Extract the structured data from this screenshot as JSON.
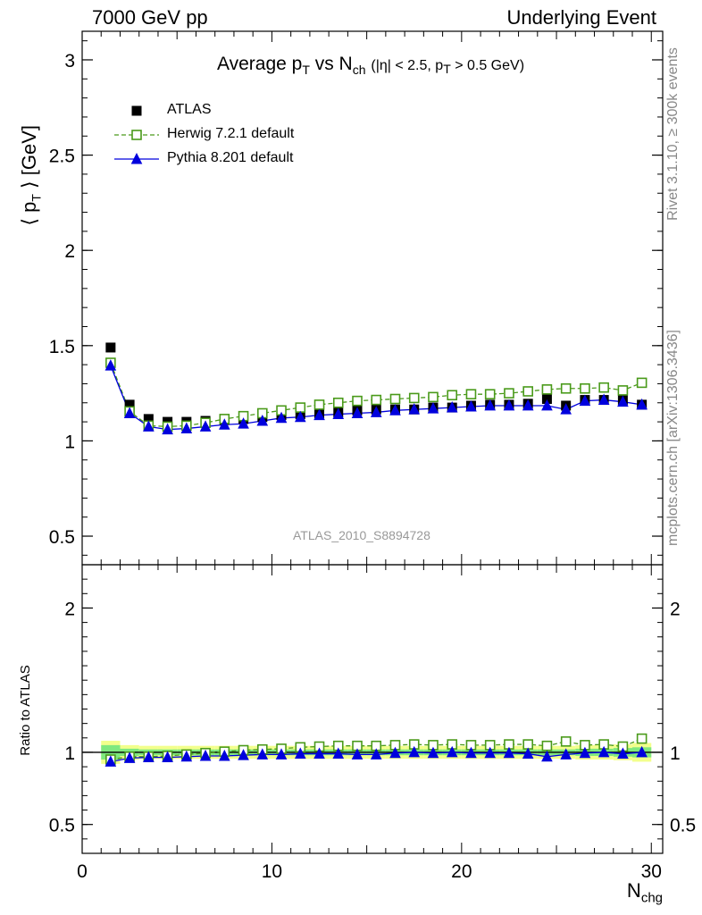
{
  "header": {
    "left": "7000 GeV pp",
    "right": "Underlying Event"
  },
  "side_labels": {
    "rivet": "Rivet 3.1.10, ≥ 300k events",
    "mcplots": "mcplots.cern.ch [arXiv:1306.3436]"
  },
  "watermark": "ATLAS_2010_S8894728",
  "colors": {
    "atlas": "#000000",
    "herwig": "#4a9a1a",
    "pythia": "#0000dd",
    "band_inner": "#7fe87f",
    "band_outer": "#f2ff8c"
  },
  "chart_data": [
    {
      "type": "scatter",
      "title": "Average pT vs Nch (|η| < 2.5, pT > 0.5 GeV)",
      "ylabel": "⟨ pT ⟩ [GeV]",
      "xlabel": "Nchg",
      "xlim": [
        0,
        30.6
      ],
      "ylim": [
        0.35,
        3.15
      ],
      "yticks": [
        0.5,
        1,
        1.5,
        2,
        2.5,
        3
      ],
      "legend_position": "top-left",
      "x": [
        1.5,
        2.5,
        3.5,
        4.5,
        5.5,
        6.5,
        7.5,
        8.5,
        9.5,
        10.5,
        11.5,
        12.5,
        13.5,
        14.5,
        15.5,
        16.5,
        17.5,
        18.5,
        19.5,
        20.5,
        21.5,
        22.5,
        23.5,
        24.5,
        25.5,
        26.5,
        27.5,
        28.5,
        29.5
      ],
      "series": [
        {
          "name": "ATLAS",
          "marker": "square-filled",
          "values": [
            1.49,
            1.19,
            1.115,
            1.1,
            1.1,
            1.105,
            1.11,
            1.115,
            1.125,
            1.135,
            1.14,
            1.145,
            1.15,
            1.16,
            1.165,
            1.165,
            1.165,
            1.175,
            1.175,
            1.185,
            1.19,
            1.19,
            1.195,
            1.22,
            1.185,
            1.215,
            1.215,
            1.215,
            1.19
          ]
        },
        {
          "name": "Herwig 7.2.1 default",
          "marker": "square-open",
          "line": "dashed",
          "values": [
            1.41,
            1.155,
            1.08,
            1.075,
            1.08,
            1.095,
            1.115,
            1.13,
            1.145,
            1.16,
            1.175,
            1.19,
            1.2,
            1.21,
            1.215,
            1.22,
            1.225,
            1.23,
            1.24,
            1.245,
            1.245,
            1.25,
            1.26,
            1.27,
            1.275,
            1.275,
            1.28,
            1.265,
            1.305
          ]
        },
        {
          "name": "Pythia 8.201 default",
          "marker": "triangle-filled",
          "line": "solid",
          "values": [
            1.395,
            1.145,
            1.075,
            1.06,
            1.065,
            1.075,
            1.085,
            1.09,
            1.105,
            1.12,
            1.125,
            1.135,
            1.14,
            1.145,
            1.15,
            1.16,
            1.165,
            1.17,
            1.175,
            1.18,
            1.185,
            1.185,
            1.185,
            1.185,
            1.165,
            1.21,
            1.215,
            1.205,
            1.19
          ]
        }
      ]
    },
    {
      "type": "scatter",
      "ylabel": "Ratio to ATLAS",
      "xlabel": "Nchg",
      "xlim": [
        0,
        30.6
      ],
      "ylim": [
        0.3,
        2.3
      ],
      "yticks": [
        0.5,
        1,
        2
      ],
      "xticks": [
        0,
        10,
        20,
        30
      ],
      "x": [
        1.5,
        2.5,
        3.5,
        4.5,
        5.5,
        6.5,
        7.5,
        8.5,
        9.5,
        10.5,
        11.5,
        12.5,
        13.5,
        14.5,
        15.5,
        16.5,
        17.5,
        18.5,
        19.5,
        20.5,
        21.5,
        22.5,
        23.5,
        24.5,
        25.5,
        26.5,
        27.5,
        28.5,
        29.5
      ],
      "bands": {
        "outer_halfwidth": [
          0.08,
          0.05,
          0.045,
          0.045,
          0.045,
          0.045,
          0.045,
          0.045,
          0.045,
          0.045,
          0.045,
          0.045,
          0.045,
          0.045,
          0.045,
          0.045,
          0.045,
          0.045,
          0.045,
          0.045,
          0.045,
          0.045,
          0.045,
          0.045,
          0.045,
          0.05,
          0.05,
          0.055,
          0.065
        ],
        "inner_halfwidth": [
          0.05,
          0.025,
          0.02,
          0.02,
          0.02,
          0.02,
          0.02,
          0.02,
          0.02,
          0.02,
          0.02,
          0.02,
          0.02,
          0.02,
          0.02,
          0.02,
          0.02,
          0.02,
          0.02,
          0.02,
          0.02,
          0.02,
          0.02,
          0.02,
          0.02,
          0.025,
          0.025,
          0.03,
          0.035
        ]
      },
      "series": [
        {
          "name": "Herwig 7.2.1 default",
          "marker": "square-open",
          "line": "dashed",
          "values": [
            0.95,
            0.97,
            0.97,
            0.975,
            0.985,
            0.995,
            1.005,
            1.015,
            1.02,
            1.025,
            1.035,
            1.04,
            1.045,
            1.045,
            1.045,
            1.05,
            1.055,
            1.05,
            1.055,
            1.05,
            1.05,
            1.055,
            1.055,
            1.045,
            1.075,
            1.05,
            1.055,
            1.04,
            1.095
          ]
        },
        {
          "name": "Pythia 8.201 default",
          "marker": "triangle-filled",
          "line": "solid",
          "values": [
            0.935,
            0.96,
            0.965,
            0.965,
            0.97,
            0.975,
            0.975,
            0.98,
            0.985,
            0.985,
            0.99,
            0.99,
            0.99,
            0.985,
            0.985,
            0.995,
            1.0,
            0.995,
            1.0,
            0.995,
            0.995,
            0.995,
            0.99,
            0.97,
            0.985,
            0.995,
            1.0,
            0.99,
            1.0
          ]
        }
      ]
    }
  ]
}
